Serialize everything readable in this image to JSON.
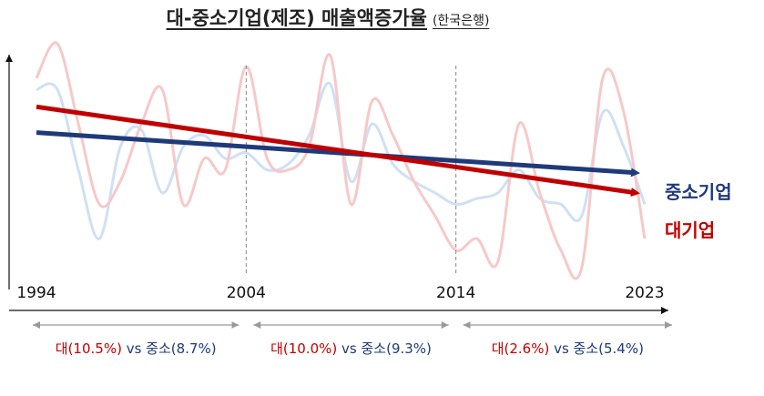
{
  "chart_data": {
    "type": "line",
    "title": "대-중소기업(제조) 매출액증가율",
    "subtitle": "(한국은행)",
    "x_ticks": [
      "1994",
      "2004",
      "2014",
      "2023"
    ],
    "xlim": [
      1994,
      2023
    ],
    "ylim": [
      -10,
      30
    ],
    "divider_years": [
      2004,
      2014
    ],
    "series": [
      {
        "name": "중소기업",
        "color": "#1f3a7a",
        "light_color": "#cfe0f5",
        "values": [
          {
            "x": 1994,
            "y": 22
          },
          {
            "x": 1995,
            "y": 22
          },
          {
            "x": 1996,
            "y": 8
          },
          {
            "x": 1997,
            "y": -4
          },
          {
            "x": 1998,
            "y": 12
          },
          {
            "x": 1999,
            "y": 15
          },
          {
            "x": 2000,
            "y": 4
          },
          {
            "x": 2001,
            "y": 12
          },
          {
            "x": 2002,
            "y": 14
          },
          {
            "x": 2003,
            "y": 10
          },
          {
            "x": 2004,
            "y": 11
          },
          {
            "x": 2005,
            "y": 8
          },
          {
            "x": 2006,
            "y": 9
          },
          {
            "x": 2007,
            "y": 14
          },
          {
            "x": 2008,
            "y": 23
          },
          {
            "x": 2009,
            "y": 6
          },
          {
            "x": 2010,
            "y": 16
          },
          {
            "x": 2011,
            "y": 9
          },
          {
            "x": 2012,
            "y": 6
          },
          {
            "x": 2013,
            "y": 4
          },
          {
            "x": 2014,
            "y": 2
          },
          {
            "x": 2015,
            "y": 3
          },
          {
            "x": 2016,
            "y": 4
          },
          {
            "x": 2017,
            "y": 8
          },
          {
            "x": 2018,
            "y": 3
          },
          {
            "x": 2019,
            "y": 2
          },
          {
            "x": 2020,
            "y": 0
          },
          {
            "x": 2021,
            "y": 18
          },
          {
            "x": 2022,
            "y": 12
          },
          {
            "x": 2023,
            "y": 2
          }
        ],
        "trend": {
          "start": 14.5,
          "end": 7.5
        }
      },
      {
        "name": "대기업",
        "color": "#c00000",
        "light_color": "#f7c8c8",
        "values": [
          {
            "x": 1994,
            "y": 24
          },
          {
            "x": 1995,
            "y": 30
          },
          {
            "x": 1996,
            "y": 16
          },
          {
            "x": 1997,
            "y": 2
          },
          {
            "x": 1998,
            "y": 6
          },
          {
            "x": 1999,
            "y": 16
          },
          {
            "x": 2000,
            "y": 22
          },
          {
            "x": 2001,
            "y": 2
          },
          {
            "x": 2002,
            "y": 10
          },
          {
            "x": 2003,
            "y": 8
          },
          {
            "x": 2004,
            "y": 26
          },
          {
            "x": 2005,
            "y": 10
          },
          {
            "x": 2006,
            "y": 8
          },
          {
            "x": 2007,
            "y": 12
          },
          {
            "x": 2008,
            "y": 28
          },
          {
            "x": 2009,
            "y": 2
          },
          {
            "x": 2010,
            "y": 20
          },
          {
            "x": 2011,
            "y": 14
          },
          {
            "x": 2012,
            "y": 6
          },
          {
            "x": 2013,
            "y": 0
          },
          {
            "x": 2014,
            "y": -6
          },
          {
            "x": 2015,
            "y": -4
          },
          {
            "x": 2016,
            "y": -8
          },
          {
            "x": 2017,
            "y": 16
          },
          {
            "x": 2018,
            "y": 4
          },
          {
            "x": 2019,
            "y": -6
          },
          {
            "x": 2020,
            "y": -9
          },
          {
            "x": 2021,
            "y": 24
          },
          {
            "x": 2022,
            "y": 18
          },
          {
            "x": 2023,
            "y": -4
          }
        ],
        "trend": {
          "start": 19,
          "end": 4
        }
      }
    ],
    "trend_labels": [
      {
        "text": "중소기업",
        "color": "#1f3a7a"
      },
      {
        "text": "대기업",
        "color": "#c00000"
      }
    ],
    "periods": [
      {
        "from": 1994,
        "to": 2004,
        "big_label": "대(10.5%)",
        "vs": "vs",
        "sme_label": "중소(8.7%)"
      },
      {
        "from": 2004,
        "to": 2014,
        "big_label": "대(10.0%)",
        "vs": "vs",
        "sme_label": "중소(9.3%)"
      },
      {
        "from": 2014,
        "to": 2023,
        "big_label": "대(2.6%)",
        "vs": "vs",
        "sme_label": "중소(5.4%)"
      }
    ]
  }
}
